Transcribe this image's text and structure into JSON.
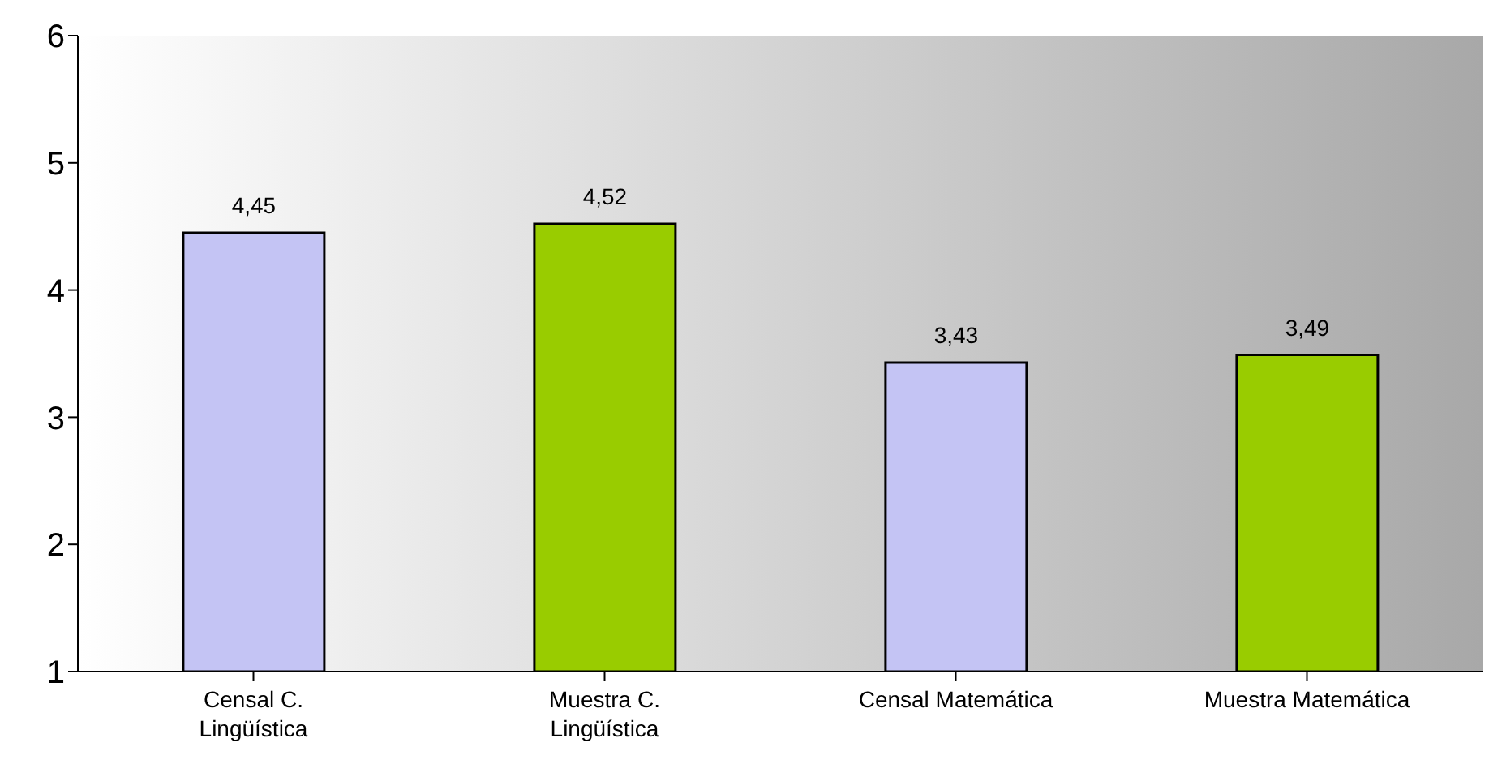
{
  "chart_data": {
    "type": "bar",
    "categories": [
      "Censal C. Lingüística",
      "Muestra C. Lingüística",
      "Censal Matemática",
      "Muestra Matemática"
    ],
    "values": [
      4.45,
      4.52,
      3.43,
      3.49
    ],
    "colors": [
      "#c4c4f4",
      "#99cc00",
      "#c4c4f4",
      "#99cc00"
    ],
    "value_labels": [
      "4,45",
      "4,52",
      "3,43",
      "3,49"
    ],
    "ylim": [
      1,
      6
    ],
    "yticks": [
      1,
      2,
      3,
      4,
      5,
      6
    ],
    "grid": false
  }
}
